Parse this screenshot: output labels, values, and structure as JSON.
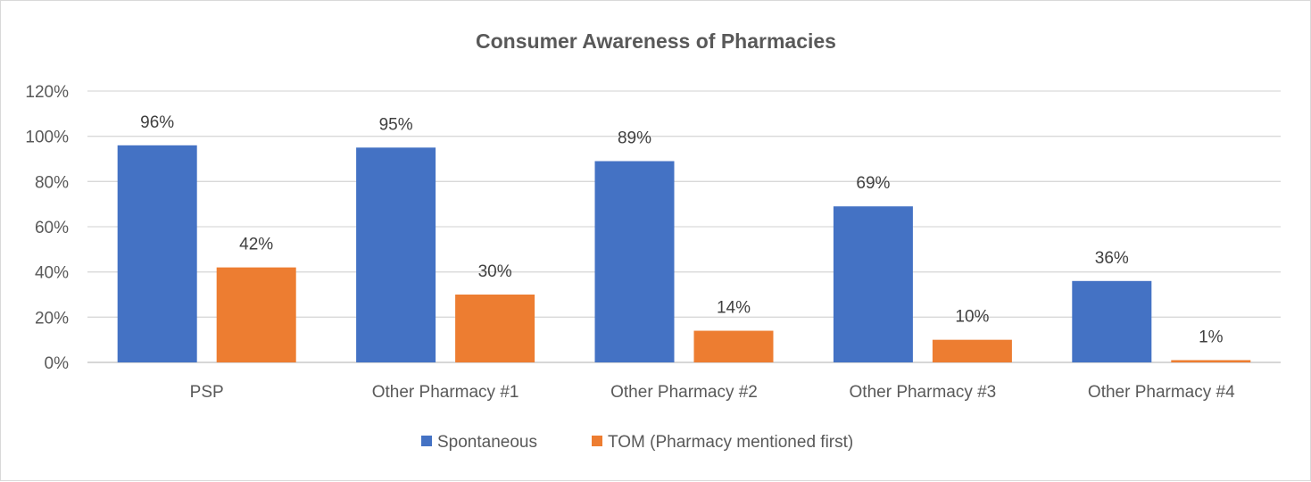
{
  "chart_data": {
    "type": "bar",
    "title": "Consumer Awareness of Pharmacies",
    "xlabel": "",
    "ylabel": "",
    "categories": [
      "PSP",
      "Other Pharmacy #1",
      "Other Pharmacy #2",
      "Other Pharmacy #3",
      "Other Pharmacy #4"
    ],
    "series": [
      {
        "name": "Spontaneous",
        "color": "#4472c4",
        "values": [
          96,
          95,
          89,
          69,
          36
        ],
        "labels": [
          "96%",
          "95%",
          "89%",
          "69%",
          "36%"
        ]
      },
      {
        "name": "TOM (Pharmacy mentioned first)",
        "color": "#ed7d31",
        "values": [
          42,
          30,
          14,
          10,
          1
        ],
        "labels": [
          "42%",
          "30%",
          "14%",
          "10%",
          "1%"
        ]
      }
    ],
    "ylim": [
      0,
      120
    ],
    "yticks": [
      0,
      20,
      40,
      60,
      80,
      100,
      120
    ],
    "ytick_labels": [
      "0%",
      "20%",
      "40%",
      "60%",
      "80%",
      "100%",
      "120%"
    ],
    "grid": true,
    "legend_position": "bottom"
  }
}
